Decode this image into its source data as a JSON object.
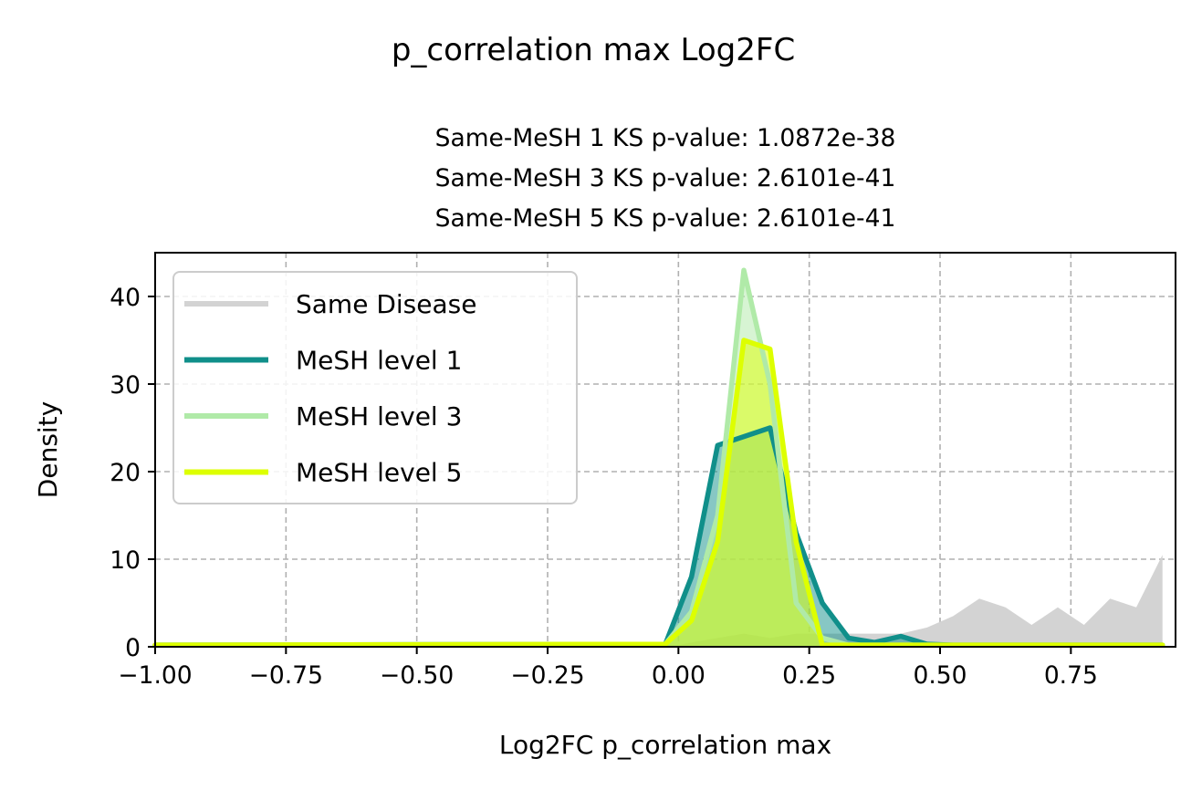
{
  "chart_data": {
    "type": "area",
    "title": "p_correlation max Log2FC",
    "subtitle_lines": [
      "Same-MeSH 1 KS p-value: 1.0872e-38",
      "Same-MeSH 3 KS p-value: 2.6101e-41",
      "Same-MeSH 5 KS p-value: 2.6101e-41"
    ],
    "xlabel": "Log2FC p_correlation max",
    "ylabel": "Density",
    "xlim": [
      -1.0,
      0.95
    ],
    "ylim": [
      0,
      45
    ],
    "xticks": [
      -1.0,
      -0.75,
      -0.5,
      -0.25,
      0.0,
      0.25,
      0.5,
      0.75
    ],
    "xtick_labels": [
      "−1.00",
      "−0.75",
      "−0.50",
      "−0.25",
      "0.00",
      "0.25",
      "0.50",
      "0.75"
    ],
    "yticks": [
      0,
      10,
      20,
      30,
      40
    ],
    "ytick_labels": [
      "0",
      "10",
      "20",
      "30",
      "40"
    ],
    "grid": true,
    "legend_position": "upper-left",
    "series": [
      {
        "name": "Same Disease",
        "color": "#d3d3d3",
        "x": [
          -1.0,
          0.0,
          0.025,
          0.075,
          0.125,
          0.175,
          0.225,
          0.275,
          0.325,
          0.375,
          0.425,
          0.475,
          0.525,
          0.575,
          0.625,
          0.675,
          0.725,
          0.775,
          0.825,
          0.875,
          0.925
        ],
        "y": [
          0.2,
          0.2,
          0.5,
          1.0,
          1.5,
          1.0,
          1.5,
          1.5,
          1.5,
          1.5,
          1.5,
          2.2,
          3.5,
          5.5,
          4.5,
          2.5,
          4.5,
          2.5,
          5.5,
          4.5,
          10.5
        ]
      },
      {
        "name": "MeSH level 1",
        "color": "#108f8a",
        "x": [
          -1.0,
          -0.025,
          0.025,
          0.075,
          0.125,
          0.175,
          0.225,
          0.275,
          0.325,
          0.375,
          0.425,
          0.475,
          0.525,
          0.925
        ],
        "y": [
          0.2,
          0.3,
          8.0,
          23.0,
          24.0,
          25.0,
          13.0,
          5.0,
          1.0,
          0.5,
          1.2,
          0.3,
          0.2,
          0.2
        ]
      },
      {
        "name": "MeSH level 3",
        "color": "#b0eaa8",
        "x": [
          -1.0,
          -0.025,
          0.025,
          0.075,
          0.125,
          0.175,
          0.225,
          0.275,
          0.325,
          0.925
        ],
        "y": [
          0.2,
          0.3,
          4.0,
          15.0,
          43.0,
          30.0,
          5.0,
          1.0,
          0.2,
          0.2
        ]
      },
      {
        "name": "MeSH level 5",
        "color": "#ddff00",
        "x": [
          -1.0,
          -0.025,
          0.025,
          0.075,
          0.125,
          0.175,
          0.225,
          0.275,
          0.325,
          0.925
        ],
        "y": [
          0.2,
          0.3,
          3.0,
          12.0,
          35.0,
          34.0,
          12.0,
          0.2,
          0.2,
          0.2
        ]
      }
    ]
  }
}
